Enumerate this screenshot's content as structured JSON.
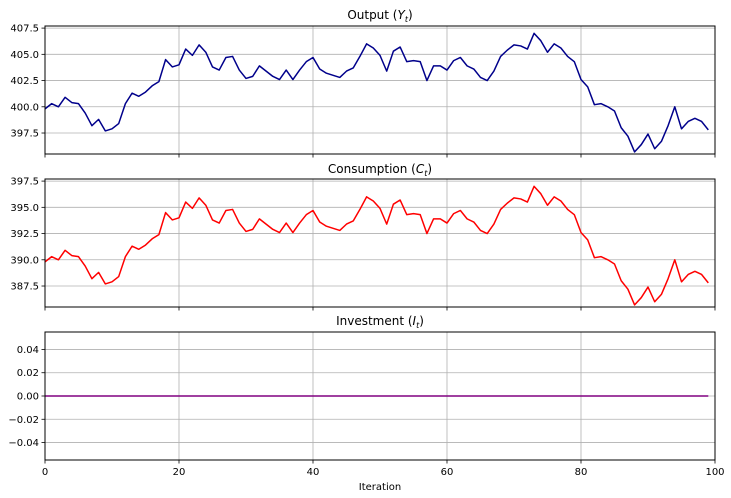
{
  "chart_data": [
    {
      "type": "line",
      "title": "Output (Y_t)",
      "title_main": "Output (",
      "title_var": "Y",
      "title_sub": "t",
      "title_end": ")",
      "xlabel": "",
      "ylabel": "",
      "xlim": [
        0,
        100
      ],
      "ylim": [
        395.5,
        407.7
      ],
      "yticks": [
        397.5,
        400.0,
        402.5,
        405.0,
        407.5
      ],
      "ytick_labels": [
        "397.5",
        "400.0",
        "402.5",
        "405.0",
        "407.5"
      ],
      "grid": true,
      "series": [
        {
          "color": "#00008b",
          "x_start": 0,
          "x_step": 1,
          "values": [
            399.8,
            400.3,
            400.0,
            400.9,
            400.4,
            400.3,
            399.4,
            398.2,
            398.8,
            397.7,
            397.9,
            398.4,
            400.3,
            401.3,
            401.0,
            401.4,
            402.0,
            402.4,
            404.5,
            403.8,
            404.0,
            405.5,
            404.9,
            405.9,
            405.2,
            403.8,
            403.5,
            404.7,
            404.8,
            403.5,
            402.7,
            402.9,
            403.9,
            403.4,
            402.9,
            402.6,
            403.5,
            402.6,
            403.5,
            404.3,
            404.7,
            403.6,
            403.2,
            403.0,
            402.8,
            403.4,
            403.7,
            404.8,
            406.0,
            405.6,
            404.9,
            403.4,
            405.3,
            405.7,
            404.3,
            404.4,
            404.3,
            402.5,
            403.9,
            403.9,
            403.5,
            404.4,
            404.7,
            403.9,
            403.6,
            402.8,
            402.5,
            403.4,
            404.8,
            405.4,
            405.9,
            405.8,
            405.5,
            407.0,
            406.3,
            405.2,
            406.0,
            405.6,
            404.8,
            404.3,
            402.6,
            401.9,
            400.2,
            400.3,
            400.0,
            399.6,
            398.0,
            397.2,
            395.7,
            396.4,
            397.4,
            396.0,
            396.7,
            398.2,
            400.0,
            397.9,
            398.6,
            398.9,
            398.6,
            397.8
          ]
        }
      ]
    },
    {
      "type": "line",
      "title": "Consumption (C_t)",
      "title_main": "Consumption (",
      "title_var": "C",
      "title_sub": "t",
      "title_end": ")",
      "xlabel": "",
      "ylabel": "",
      "xlim": [
        0,
        100
      ],
      "ylim": [
        385.5,
        397.7
      ],
      "yticks": [
        387.5,
        390.0,
        392.5,
        395.0,
        397.5
      ],
      "ytick_labels": [
        "387.5",
        "390.0",
        "392.5",
        "395.0",
        "397.5"
      ],
      "grid": true,
      "series": [
        {
          "color": "#ff0000",
          "x_start": 0,
          "x_step": 1,
          "values": [
            389.8,
            390.3,
            390.0,
            390.9,
            390.4,
            390.3,
            389.4,
            388.2,
            388.8,
            387.7,
            387.9,
            388.4,
            390.3,
            391.3,
            391.0,
            391.4,
            392.0,
            392.4,
            394.5,
            393.8,
            394.0,
            395.5,
            394.9,
            395.9,
            395.2,
            393.8,
            393.5,
            394.7,
            394.8,
            393.5,
            392.7,
            392.9,
            393.9,
            393.4,
            392.9,
            392.6,
            393.5,
            392.6,
            393.5,
            394.3,
            394.7,
            393.6,
            393.2,
            393.0,
            392.8,
            393.4,
            393.7,
            394.8,
            396.0,
            395.6,
            394.9,
            393.4,
            395.3,
            395.7,
            394.3,
            394.4,
            394.3,
            392.5,
            393.9,
            393.9,
            393.5,
            394.4,
            394.7,
            393.9,
            393.6,
            392.8,
            392.5,
            393.4,
            394.8,
            395.4,
            395.9,
            395.8,
            395.5,
            397.0,
            396.3,
            395.2,
            396.0,
            395.6,
            394.8,
            394.3,
            392.6,
            391.9,
            390.2,
            390.3,
            390.0,
            389.6,
            388.0,
            387.2,
            385.7,
            386.4,
            387.4,
            386.0,
            386.7,
            388.2,
            390.0,
            387.9,
            388.6,
            388.9,
            388.6,
            387.8
          ]
        }
      ]
    },
    {
      "type": "line",
      "title": "Investment (I_t)",
      "title_main": "Investment (",
      "title_var": "I",
      "title_sub": "t",
      "title_end": ")",
      "xlabel": "Iteration",
      "ylabel": "",
      "xlim": [
        0,
        100
      ],
      "ylim": [
        -0.055,
        0.055
      ],
      "yticks": [
        -0.04,
        -0.02,
        0.0,
        0.02,
        0.04
      ],
      "ytick_labels": [
        "−0.04",
        "−0.02",
        "0.00",
        "0.02",
        "0.04"
      ],
      "xticks": [
        0,
        20,
        40,
        60,
        80,
        100
      ],
      "xtick_labels": [
        "0",
        "20",
        "40",
        "60",
        "80",
        "100"
      ],
      "grid": true,
      "series": [
        {
          "color": "#800080",
          "x_start": 0,
          "x_step": 1,
          "constant": 0.0,
          "count": 100
        }
      ]
    }
  ]
}
